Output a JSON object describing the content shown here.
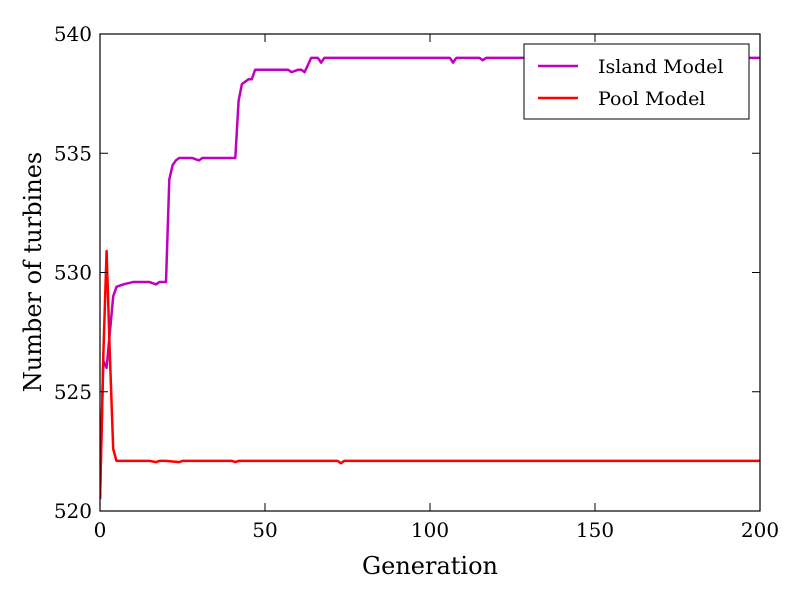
{
  "chart_data": {
    "type": "line",
    "title": "",
    "xlabel": "Generation",
    "ylabel": "Number of turbines",
    "xlim": [
      0,
      200
    ],
    "ylim": [
      520,
      540
    ],
    "xticks": [
      0,
      50,
      100,
      150,
      200
    ],
    "yticks": [
      520,
      525,
      530,
      535,
      540
    ],
    "grid": false,
    "legend_position": "top-right",
    "series": [
      {
        "name": "Island Model",
        "color": "#bf00bf",
        "x": [
          0,
          1,
          2,
          3,
          4,
          5,
          7,
          10,
          15,
          17,
          18,
          20,
          21,
          22,
          23,
          24,
          25,
          28,
          30,
          31,
          35,
          41,
          42,
          43,
          45,
          46,
          47,
          50,
          57,
          58,
          60,
          61,
          62,
          64,
          66,
          67,
          68,
          70,
          80,
          90,
          100,
          106,
          107,
          108,
          115,
          116,
          117,
          200
        ],
        "y": [
          520.5,
          526.3,
          526.0,
          527.5,
          529.0,
          529.4,
          529.5,
          529.6,
          529.6,
          529.5,
          529.6,
          529.6,
          533.9,
          534.5,
          534.7,
          534.8,
          534.8,
          534.8,
          534.7,
          534.8,
          534.8,
          534.8,
          537.2,
          537.9,
          538.1,
          538.1,
          538.5,
          538.5,
          538.5,
          538.4,
          538.5,
          538.5,
          538.4,
          539.0,
          539.0,
          538.8,
          539.0,
          539.0,
          539.0,
          539.0,
          539.0,
          539.0,
          538.8,
          539.0,
          539.0,
          538.9,
          539.0,
          539.0
        ]
      },
      {
        "name": "Pool Model",
        "color": "#ff0000",
        "x": [
          0,
          1,
          2,
          3,
          4,
          5,
          10,
          15,
          17,
          18,
          20,
          24,
          25,
          40,
          41,
          42,
          72,
          73,
          74,
          200
        ],
        "y": [
          520.5,
          526.5,
          530.9,
          526.5,
          522.6,
          522.1,
          522.1,
          522.1,
          522.05,
          522.1,
          522.1,
          522.05,
          522.1,
          522.1,
          522.05,
          522.1,
          522.1,
          522.0,
          522.1,
          522.1
        ]
      }
    ]
  }
}
